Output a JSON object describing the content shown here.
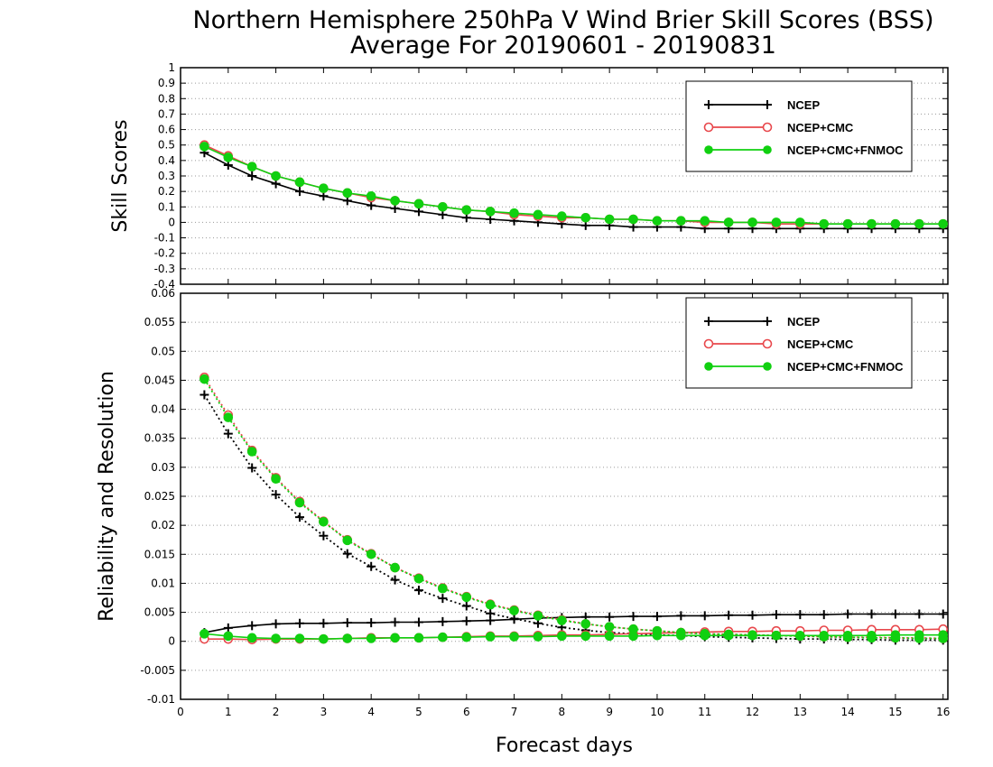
{
  "title_line1": "Northern Hemisphere 250hPa V Wind Brier Skill Scores (BSS)",
  "title_line2": "Average For 20190601 - 20190831",
  "colors": {
    "NCEP": "#000000",
    "NCEP+CMC": "#e8484c",
    "NCEP+CMC+FNMOC": "#10d010"
  },
  "chart_data": [
    {
      "type": "line",
      "ylabel": "Skill Scores",
      "xlim": [
        0,
        16.1
      ],
      "ylim": [
        -0.4,
        1
      ],
      "yticks": [
        -0.4,
        -0.3,
        -0.2,
        -0.1,
        0,
        0.1,
        0.2,
        0.3,
        0.4,
        0.5,
        0.6,
        0.7,
        0.8,
        0.9,
        1
      ],
      "ytick_labels": [
        "-0.4",
        "-0.3",
        "-0.2",
        "-0.1",
        "0",
        "0.1",
        "0.2",
        "0.3",
        "0.4",
        "0.5",
        "0.6",
        "0.7",
        "0.8",
        "0.9",
        "1"
      ],
      "grid": true,
      "legend": "top-right",
      "x": [
        0.5,
        1,
        1.5,
        2,
        2.5,
        3,
        3.5,
        4,
        4.5,
        5,
        5.5,
        6,
        6.5,
        7,
        7.5,
        8,
        8.5,
        9,
        9.5,
        10,
        10.5,
        11,
        11.5,
        12,
        12.5,
        13,
        13.5,
        14,
        14.5,
        15,
        15.5,
        16
      ],
      "series": [
        {
          "name": "NCEP",
          "marker": "plus",
          "values": [
            0.45,
            0.37,
            0.3,
            0.25,
            0.2,
            0.17,
            0.14,
            0.11,
            0.09,
            0.07,
            0.05,
            0.03,
            0.02,
            0.01,
            0.0,
            -0.01,
            -0.02,
            -0.02,
            -0.03,
            -0.03,
            -0.03,
            -0.04,
            -0.04,
            -0.04,
            -0.04,
            -0.04,
            -0.04,
            -0.04,
            -0.04,
            -0.04,
            -0.04,
            -0.04
          ]
        },
        {
          "name": "NCEP+CMC",
          "marker": "open-circle",
          "values": [
            0.5,
            0.43,
            0.36,
            0.3,
            0.26,
            0.22,
            0.19,
            0.16,
            0.14,
            0.12,
            0.1,
            0.08,
            0.07,
            0.05,
            0.04,
            0.03,
            0.03,
            0.02,
            0.02,
            0.01,
            0.01,
            0.0,
            0.0,
            0.0,
            -0.01,
            -0.01,
            -0.01,
            -0.01,
            -0.01,
            -0.01,
            -0.01,
            -0.01
          ]
        },
        {
          "name": "NCEP+CMC+FNMOC",
          "marker": "filled-circle",
          "values": [
            0.49,
            0.42,
            0.36,
            0.3,
            0.26,
            0.22,
            0.19,
            0.17,
            0.14,
            0.12,
            0.1,
            0.08,
            0.07,
            0.06,
            0.05,
            0.04,
            0.03,
            0.02,
            0.02,
            0.01,
            0.01,
            0.01,
            0.0,
            0.0,
            0.0,
            0.0,
            -0.01,
            -0.01,
            -0.01,
            -0.01,
            -0.01,
            -0.01
          ]
        }
      ]
    },
    {
      "type": "line",
      "ylabel": "Reliability and Resolution",
      "xlabel": "Forecast days",
      "xlim": [
        0,
        16.1
      ],
      "xticks": [
        0,
        1,
        2,
        3,
        4,
        5,
        6,
        7,
        8,
        9,
        10,
        11,
        12,
        13,
        14,
        15,
        16
      ],
      "xtick_labels": [
        "0",
        "1",
        "2",
        "3",
        "4",
        "5",
        "6",
        "7",
        "8",
        "9",
        "10",
        "11",
        "12",
        "13",
        "14",
        "15",
        "16"
      ],
      "ylim": [
        -0.01,
        0.06
      ],
      "yticks": [
        -0.01,
        -0.005,
        0,
        0.005,
        0.01,
        0.015,
        0.02,
        0.025,
        0.03,
        0.035,
        0.04,
        0.045,
        0.05,
        0.055,
        0.06
      ],
      "ytick_labels": [
        "-0.01",
        "-0.005",
        "0",
        "0.005",
        "0.01",
        "0.015",
        "0.02",
        "0.025",
        "0.03",
        "0.035",
        "0.04",
        "0.045",
        "0.05",
        "0.055",
        "0.06"
      ],
      "grid": true,
      "legend": "top-right",
      "x": [
        0.5,
        1,
        1.5,
        2,
        2.5,
        3,
        3.5,
        4,
        4.5,
        5,
        5.5,
        6,
        6.5,
        7,
        7.5,
        8,
        8.5,
        9,
        9.5,
        10,
        10.5,
        11,
        11.5,
        12,
        12.5,
        13,
        13.5,
        14,
        14.5,
        15,
        15.5,
        16
      ],
      "series": [
        {
          "name": "NCEP",
          "marker": "plus",
          "line": "solid",
          "values": [
            0.0015,
            0.0023,
            0.0027,
            0.003,
            0.0031,
            0.0031,
            0.0032,
            0.0032,
            0.0033,
            0.0033,
            0.0034,
            0.0035,
            0.0036,
            0.0038,
            0.004,
            0.0041,
            0.0042,
            0.0042,
            0.0043,
            0.0043,
            0.0044,
            0.0044,
            0.0045,
            0.0045,
            0.0046,
            0.0046,
            0.0046,
            0.0047,
            0.0047,
            0.0047,
            0.0047,
            0.0047
          ]
        },
        {
          "name": "NCEP",
          "marker": "plus",
          "line": "dotted",
          "values": [
            0.0425,
            0.0358,
            0.0299,
            0.0253,
            0.0214,
            0.0182,
            0.0151,
            0.0129,
            0.0106,
            0.0088,
            0.0074,
            0.0061,
            0.0048,
            0.0039,
            0.0031,
            0.0024,
            0.0019,
            0.0015,
            0.0013,
            0.0011,
            0.001,
            0.0008,
            0.0007,
            0.0006,
            0.0005,
            0.0004,
            0.0004,
            0.0003,
            0.0003,
            0.0002,
            0.0002,
            0.0002
          ]
        },
        {
          "name": "NCEP+CMC",
          "marker": "open-circle",
          "line": "solid",
          "values": [
            0.0004,
            0.0004,
            0.0003,
            0.0004,
            0.0004,
            0.0004,
            0.0005,
            0.0006,
            0.0006,
            0.0006,
            0.0007,
            0.0008,
            0.0009,
            0.0009,
            0.001,
            0.0011,
            0.0011,
            0.0012,
            0.0013,
            0.0014,
            0.0015,
            0.0016,
            0.0017,
            0.0017,
            0.0018,
            0.0018,
            0.0019,
            0.0019,
            0.002,
            0.002,
            0.002,
            0.0021
          ]
        },
        {
          "name": "NCEP+CMC",
          "marker": "open-circle",
          "line": "dotted",
          "values": [
            0.0455,
            0.039,
            0.0329,
            0.0282,
            0.0241,
            0.0207,
            0.0175,
            0.0151,
            0.0127,
            0.0109,
            0.0092,
            0.0077,
            0.0064,
            0.0054,
            0.0045,
            0.0037,
            0.003,
            0.0025,
            0.0021,
            0.0018,
            0.0015,
            0.0013,
            0.0012,
            0.0011,
            0.001,
            0.0009,
            0.0008,
            0.0007,
            0.0007,
            0.0006,
            0.0006,
            0.0005
          ]
        },
        {
          "name": "NCEP+CMC+FNMOC",
          "marker": "filled-circle",
          "line": "solid",
          "values": [
            0.0013,
            0.0009,
            0.0006,
            0.0005,
            0.0005,
            0.0004,
            0.0005,
            0.0005,
            0.0006,
            0.0006,
            0.0007,
            0.0007,
            0.0008,
            0.0008,
            0.0008,
            0.0009,
            0.0009,
            0.0009,
            0.0009,
            0.001,
            0.001,
            0.001,
            0.001,
            0.001,
            0.001,
            0.001,
            0.001,
            0.001,
            0.001,
            0.0011,
            0.0011,
            0.0011
          ]
        },
        {
          "name": "NCEP+CMC+FNMOC",
          "marker": "filled-circle",
          "line": "dotted",
          "values": [
            0.0452,
            0.0386,
            0.0327,
            0.028,
            0.0239,
            0.0206,
            0.0174,
            0.015,
            0.0127,
            0.0108,
            0.0091,
            0.0076,
            0.0063,
            0.0053,
            0.0044,
            0.0036,
            0.003,
            0.0025,
            0.0021,
            0.0018,
            0.0015,
            0.0013,
            0.0012,
            0.0011,
            0.001,
            0.0009,
            0.0008,
            0.0007,
            0.0006,
            0.0006,
            0.0005,
            0.0005
          ]
        }
      ]
    }
  ]
}
